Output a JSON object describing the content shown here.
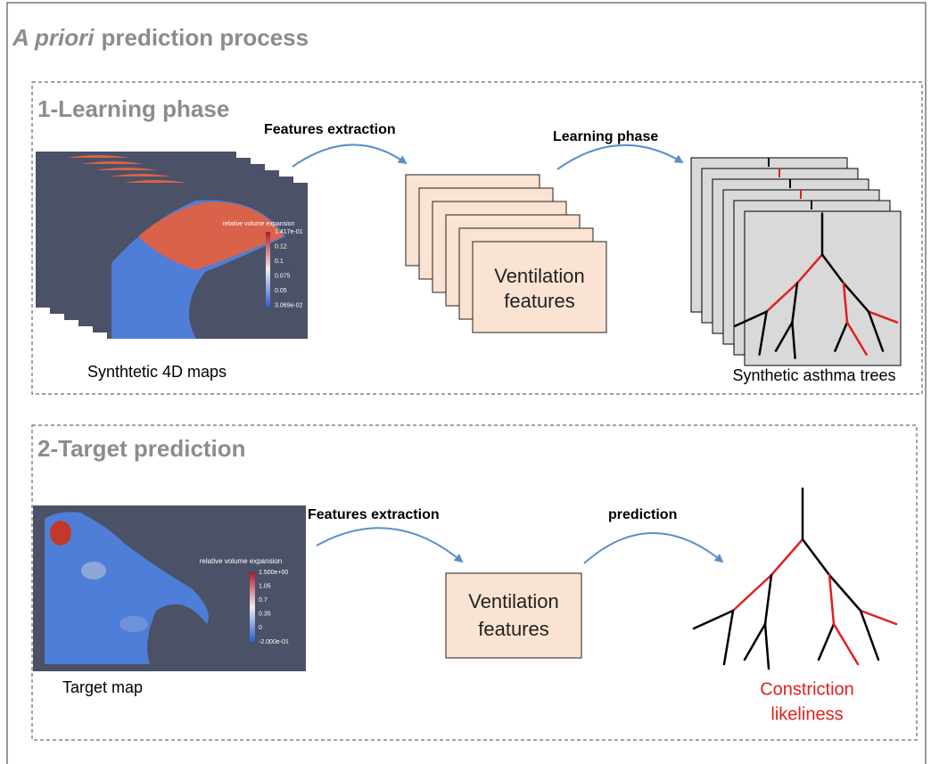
{
  "header": {
    "title_italic": "A priori",
    "title_rest": "prediction process"
  },
  "sections": [
    {
      "title": "1-Learning phase",
      "arrows": [
        "Features extraction",
        "Learning phase"
      ],
      "box_line1": "Ventilation",
      "box_line2": "features",
      "left_caption": "Synthtetic 4D maps",
      "right_caption": "Synthetic asthma trees",
      "map": {
        "colorbar_title": "relative volume expansion",
        "colorbar_labels": [
          "1.417e-01",
          "0.12",
          "0.1",
          "0.075",
          "0.05",
          "3.069e-02"
        ]
      }
    },
    {
      "title": "2-Target prediction",
      "arrows": [
        "Features extraction",
        "prediction"
      ],
      "box_line1": "Ventilation",
      "box_line2": "features",
      "left_caption": "Target map",
      "map": {
        "colorbar_title": "relative volume expansion",
        "colorbar_labels": [
          "1.500e+00",
          "1.05",
          "0.7",
          "0.35",
          "0",
          "-2.000e-01"
        ]
      },
      "result_line1": "Constriction",
      "result_line2": "likeliness"
    }
  ]
}
